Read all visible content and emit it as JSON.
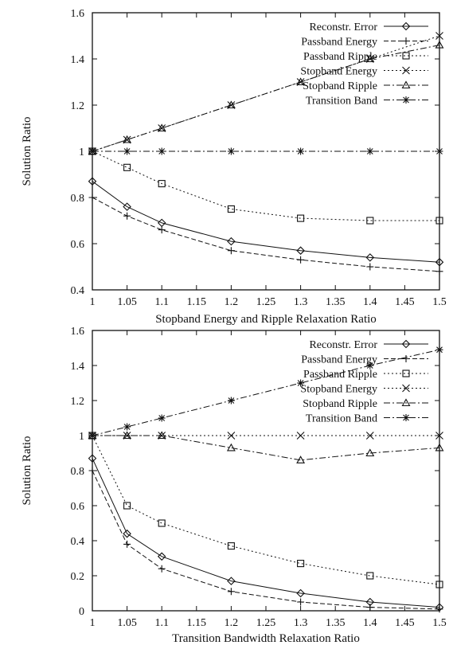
{
  "chart_data": [
    {
      "type": "line",
      "xlabel": "Stopband Energy and Ripple Relaxation Ratio",
      "ylabel": "Solution Ratio",
      "x": [
        1,
        1.05,
        1.1,
        1.2,
        1.3,
        1.4,
        1.5
      ],
      "xlim": [
        1,
        1.5
      ],
      "ylim": [
        0.4,
        1.6
      ],
      "xticks": [
        "1",
        "1.05",
        "1.1",
        "1.15",
        "1.2",
        "1.25",
        "1.3",
        "1.35",
        "1.4",
        "1.45",
        "1.5"
      ],
      "yticks": [
        "0.4",
        "0.6",
        "0.8",
        "1",
        "1.2",
        "1.4",
        "1.6"
      ],
      "legend_position": "top-right",
      "grid": false,
      "series": [
        {
          "name": "Reconstr. Error",
          "marker": "diamond",
          "dash": "solid",
          "values": [
            0.87,
            0.76,
            0.69,
            0.61,
            0.57,
            0.54,
            0.52
          ]
        },
        {
          "name": "Passband Energy",
          "marker": "plus",
          "dash": "dashed",
          "values": [
            0.8,
            0.72,
            0.66,
            0.57,
            0.53,
            0.5,
            0.48
          ]
        },
        {
          "name": "Passband Ripple",
          "marker": "square",
          "dash": "dotted",
          "values": [
            1.0,
            0.93,
            0.86,
            0.75,
            0.71,
            0.7,
            0.7
          ]
        },
        {
          "name": "Stopband Energy",
          "marker": "cross",
          "dash": "dotted",
          "values": [
            1.0,
            1.05,
            1.1,
            1.2,
            1.3,
            1.4,
            1.5
          ]
        },
        {
          "name": "Stopband Ripple",
          "marker": "triangle",
          "dash": "dashdot",
          "values": [
            1.0,
            1.05,
            1.1,
            1.2,
            1.3,
            1.4,
            1.46
          ]
        },
        {
          "name": "Transition Band",
          "marker": "star",
          "dash": "dashdot",
          "values": [
            1.0,
            1.0,
            1.0,
            1.0,
            1.0,
            1.0,
            1.0
          ]
        }
      ]
    },
    {
      "type": "line",
      "xlabel": "Transition Bandwidth Relaxation Ratio",
      "ylabel": "Solution Ratio",
      "x": [
        1,
        1.05,
        1.1,
        1.2,
        1.3,
        1.4,
        1.5
      ],
      "xlim": [
        1,
        1.5
      ],
      "ylim": [
        0,
        1.6
      ],
      "xticks": [
        "1",
        "1.05",
        "1.1",
        "1.15",
        "1.2",
        "1.25",
        "1.3",
        "1.35",
        "1.4",
        "1.45",
        "1.5"
      ],
      "yticks": [
        "0",
        "0.2",
        "0.4",
        "0.6",
        "0.8",
        "1",
        "1.2",
        "1.4",
        "1.6"
      ],
      "legend_position": "top-right",
      "grid": false,
      "series": [
        {
          "name": "Reconstr. Error",
          "marker": "diamond",
          "dash": "solid",
          "values": [
            0.87,
            0.44,
            0.31,
            0.17,
            0.1,
            0.05,
            0.02
          ]
        },
        {
          "name": "Passband Energy",
          "marker": "plus",
          "dash": "dashed",
          "values": [
            0.8,
            0.38,
            0.24,
            0.11,
            0.05,
            0.02,
            0.01
          ]
        },
        {
          "name": "Passband Ripple",
          "marker": "square",
          "dash": "dotted",
          "values": [
            1.0,
            0.6,
            0.5,
            0.37,
            0.27,
            0.2,
            0.15
          ]
        },
        {
          "name": "Stopband Energy",
          "marker": "cross",
          "dash": "dotted",
          "values": [
            1.0,
            1.0,
            1.0,
            1.0,
            1.0,
            1.0,
            1.0
          ]
        },
        {
          "name": "Stopband Ripple",
          "marker": "triangle",
          "dash": "dashdot",
          "values": [
            1.0,
            1.0,
            1.0,
            0.93,
            0.86,
            0.9,
            0.93
          ]
        },
        {
          "name": "Transition Band",
          "marker": "star",
          "dash": "dashdot",
          "values": [
            1.0,
            1.05,
            1.1,
            1.2,
            1.3,
            1.4,
            1.49
          ]
        }
      ]
    }
  ]
}
